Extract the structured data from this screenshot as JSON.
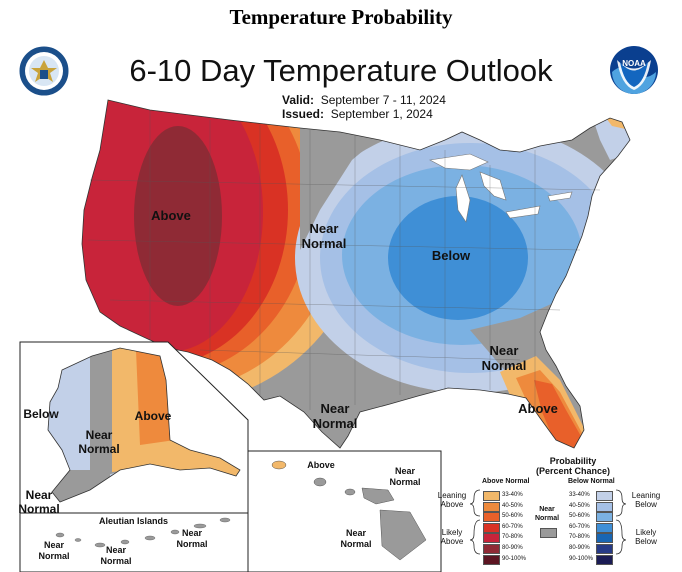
{
  "page_title": "Temperature Probability",
  "main_title": "6-10 Day Temperature Outlook",
  "valid_label": "Valid:",
  "valid_dates": "September 7 - 11, 2024",
  "issued_label": "Issued:",
  "issued_date": "September 1, 2024",
  "labels": {
    "conus_above": "Above",
    "conus_near_west": "Near\nNormal",
    "conus_below": "Below",
    "conus_near_se": "Near\nNormal",
    "conus_near_gulf": "Near\nNormal",
    "conus_above_fl": "Above",
    "ak_below": "Below",
    "ak_near": "Near\nNormal",
    "ak_above": "Above",
    "ak_near_sw": "Near\nNormal",
    "aleut_title": "Aleutian Islands",
    "aleut_near_1": "Near\nNormal",
    "aleut_near_2": "Near\nNormal",
    "aleut_near_3": "Near\nNormal",
    "hi_above": "Above",
    "hi_near_1": "Near\nNormal",
    "hi_near_2": "Near\nNormal"
  },
  "legend": {
    "title": "Probability\n(Percent Chance)",
    "above_header": "Above Normal",
    "below_header": "Below Normal",
    "near_label": "Near\nNormal",
    "leaning_above": "Leaning\nAbove",
    "likely_above": "Likely\nAbove",
    "leaning_below": "Leaning\nBelow",
    "likely_below": "Likely\nBelow",
    "above_bins": [
      "33-40%",
      "40-50%",
      "50-60%",
      "60-70%",
      "70-80%",
      "80-90%",
      "90-100%"
    ],
    "below_bins": [
      "33-40%",
      "40-50%",
      "50-60%",
      "60-70%",
      "70-80%",
      "80-90%",
      "90-100%"
    ],
    "above_colors": [
      "#f2b86a",
      "#ee8a3d",
      "#e8602a",
      "#d93224",
      "#c8243a",
      "#8f2a35",
      "#5c1522"
    ],
    "below_colors": [
      "#c2d0e8",
      "#a5c0e6",
      "#7bb1e2",
      "#3f8fd6",
      "#1966b3",
      "#263a86",
      "#1b1c55"
    ],
    "near_color": "#9a9a9a"
  }
}
